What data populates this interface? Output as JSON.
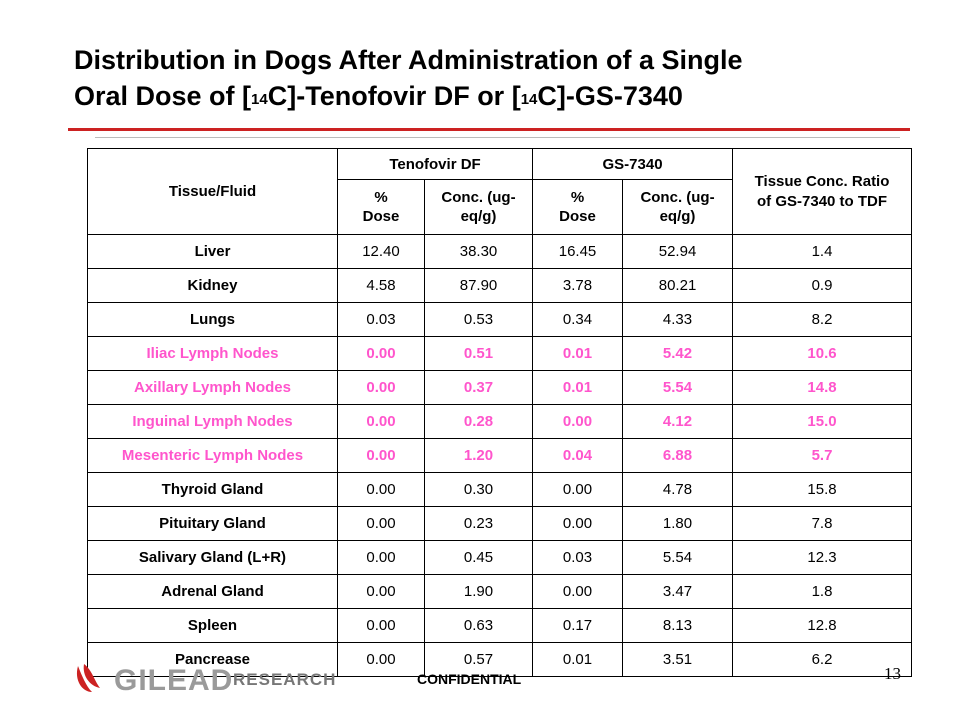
{
  "title": {
    "line1": "Distribution in Dogs After Administration of a Single",
    "line2_a": "Oral Dose of [",
    "sup1": "14",
    "line2_b": "C]-Tenofovir DF or [",
    "sup2": "14",
    "line2_c": "C]-GS-7340"
  },
  "table": {
    "header": {
      "tissue": "Tissue/Fluid",
      "tdf": "Tenofovir DF",
      "gs": "GS-7340",
      "ratio": "Tissue Conc. Ratio of GS-7340 to TDF",
      "pct_dose": "% Dose",
      "conc": "Conc. (ug-eq/g)"
    },
    "rows": [
      {
        "tissue": "Liver",
        "tdf_pct": "12.40",
        "tdf_conc": "38.30",
        "gs_pct": "16.45",
        "gs_conc": "52.94",
        "ratio": "1.4"
      },
      {
        "tissue": "Kidney",
        "tdf_pct": "4.58",
        "tdf_conc": "87.90",
        "gs_pct": "3.78",
        "gs_conc": "80.21",
        "ratio": "0.9"
      },
      {
        "tissue": "Lungs",
        "tdf_pct": "0.03",
        "tdf_conc": "0.53",
        "gs_pct": "0.34",
        "gs_conc": "4.33",
        "ratio": "8.2"
      },
      {
        "tissue": "Iliac Lymph Nodes",
        "tdf_pct": "0.00",
        "tdf_conc": "0.51",
        "gs_pct": "0.01",
        "gs_conc": "5.42",
        "ratio": "10.6"
      },
      {
        "tissue": "Axillary Lymph Nodes",
        "tdf_pct": "0.00",
        "tdf_conc": "0.37",
        "gs_pct": "0.01",
        "gs_conc": "5.54",
        "ratio": "14.8"
      },
      {
        "tissue": "Inguinal Lymph Nodes",
        "tdf_pct": "0.00",
        "tdf_conc": "0.28",
        "gs_pct": "0.00",
        "gs_conc": "4.12",
        "ratio": "15.0"
      },
      {
        "tissue": "Mesenteric Lymph Nodes",
        "tdf_pct": "0.00",
        "tdf_conc": "1.20",
        "gs_pct": "0.04",
        "gs_conc": "6.88",
        "ratio": "5.7"
      },
      {
        "tissue": "Thyroid Gland",
        "tdf_pct": "0.00",
        "tdf_conc": "0.30",
        "gs_pct": "0.00",
        "gs_conc": "4.78",
        "ratio": "15.8"
      },
      {
        "tissue": "Pituitary Gland",
        "tdf_pct": "0.00",
        "tdf_conc": "0.23",
        "gs_pct": "0.00",
        "gs_conc": "1.80",
        "ratio": "7.8"
      },
      {
        "tissue": "Salivary Gland (L+R)",
        "tdf_pct": "0.00",
        "tdf_conc": "0.45",
        "gs_pct": "0.03",
        "gs_conc": "5.54",
        "ratio": "12.3"
      },
      {
        "tissue": "Adrenal Gland",
        "tdf_pct": "0.00",
        "tdf_conc": "1.90",
        "gs_pct": "0.00",
        "gs_conc": "3.47",
        "ratio": "1.8"
      },
      {
        "tissue": "Spleen",
        "tdf_pct": "0.00",
        "tdf_conc": "0.63",
        "gs_pct": "0.17",
        "gs_conc": "8.13",
        "ratio": "12.8"
      },
      {
        "tissue": "Pancrease",
        "tdf_pct": "0.00",
        "tdf_conc": "0.57",
        "gs_pct": "0.01",
        "gs_conc": "3.51",
        "ratio": "6.2"
      }
    ]
  },
  "footer": {
    "brand": "GILEAD",
    "brand_suffix": "RESEARCH",
    "confidential": "CONFIDENTIAL",
    "page_number": "13"
  },
  "colors": {
    "accent_rule": "#cc2222",
    "lymph_highlight": "#ff55cc"
  }
}
